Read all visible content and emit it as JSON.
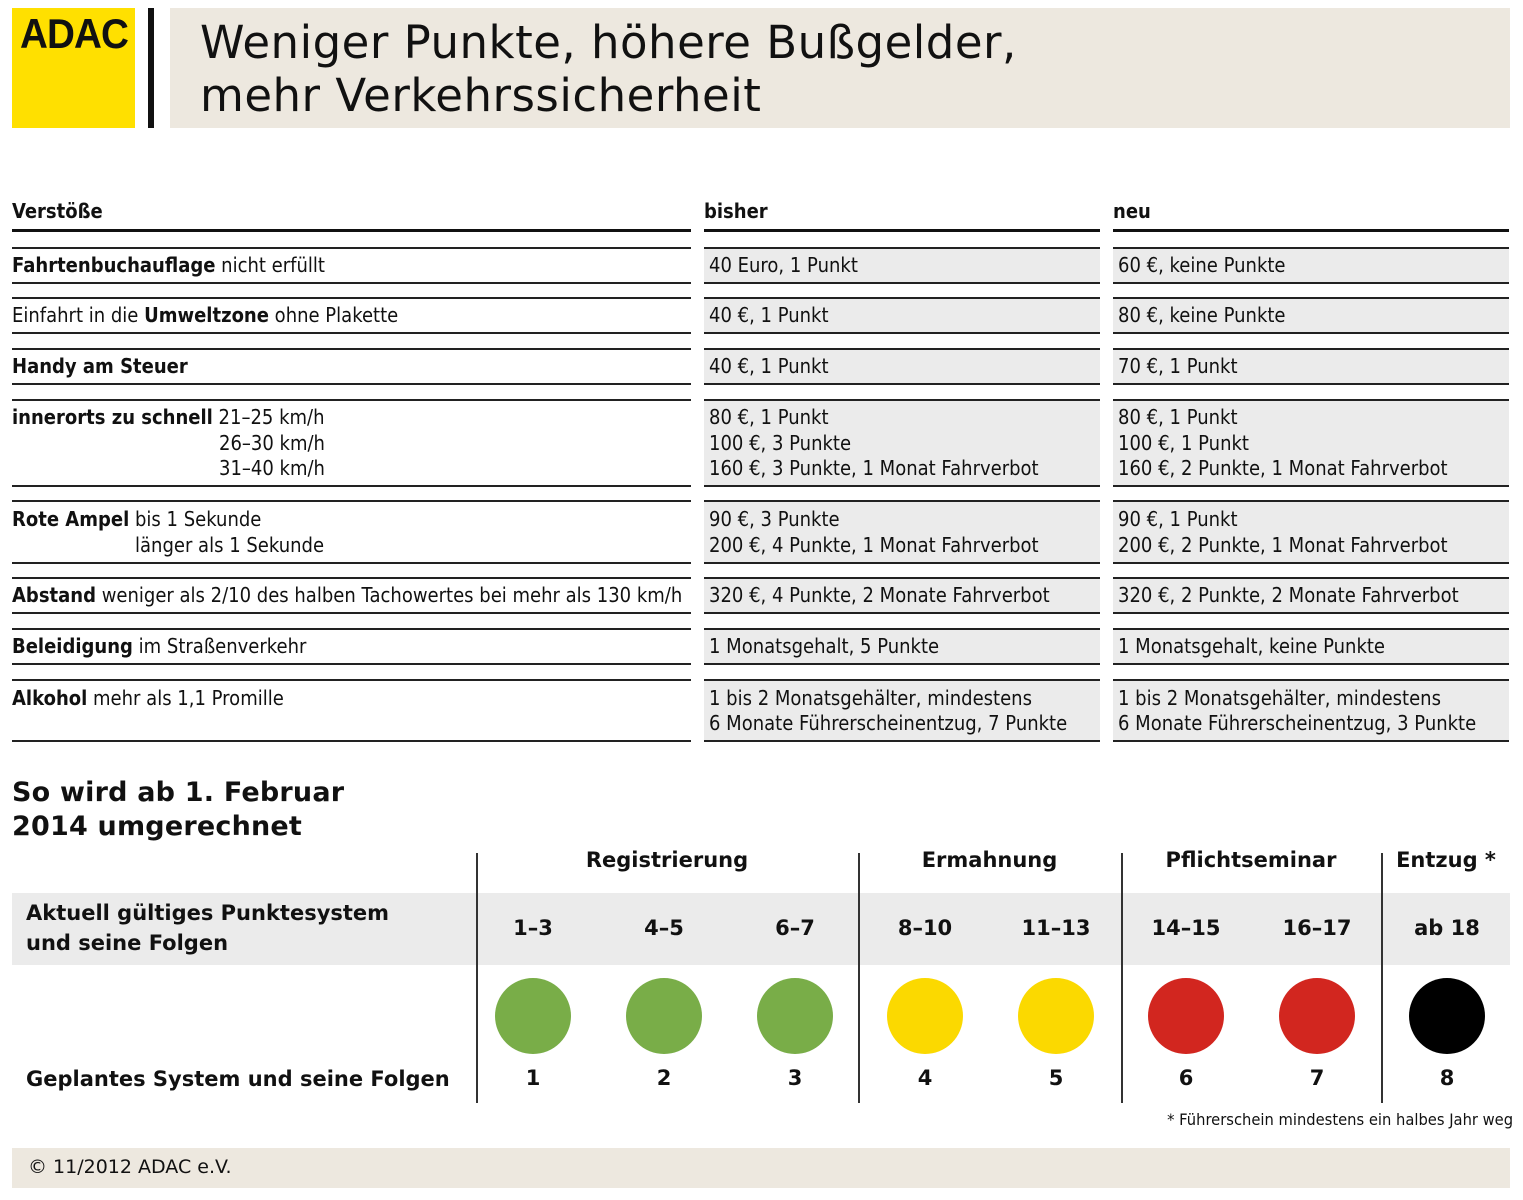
{
  "header": {
    "logo_text": "ADAC",
    "title_line1": "Weniger Punkte, höhere Bußgelder,",
    "title_line2": "mehr Verkehrssicherheit"
  },
  "table": {
    "columns": [
      "Verstöße",
      "bisher",
      "neu"
    ],
    "rows": [
      {
        "offense": [
          [
            {
              "b": "Fahrtenbuchauflage"
            },
            {
              "t": " nicht erfüllt"
            }
          ]
        ],
        "bisher": [
          "40 Euro, 1 Punkt"
        ],
        "neu": [
          "60 €, keine Punkte"
        ]
      },
      {
        "offense": [
          [
            {
              "t": "Einfahrt in die "
            },
            {
              "b": "Umweltzone"
            },
            {
              "t": " ohne Plakette"
            }
          ]
        ],
        "bisher": [
          "40 €, 1 Punkt"
        ],
        "neu": [
          "80 €, keine Punkte"
        ]
      },
      {
        "offense": [
          [
            {
              "b": "Handy am Steuer"
            }
          ]
        ],
        "bisher": [
          "40 €, 1 Punkt"
        ],
        "neu": [
          "70 €, 1 Punkt"
        ]
      },
      {
        "offense": [
          [
            {
              "b": "innerorts zu schnell"
            },
            {
              "t": " 21–25 km/h"
            }
          ],
          [
            {
              "t": "26–30 km/h"
            }
          ],
          [
            {
              "t": "31–40 km/h"
            }
          ]
        ],
        "bisher": [
          "80 €, 1 Punkt",
          "100 €, 3 Punkte",
          "160 €, 3 Punkte, 1 Monat Fahrverbot"
        ],
        "neu": [
          "80 €, 1 Punkt",
          "100 €, 1 Punkt",
          "160 €, 2 Punkte, 1 Monat Fahrverbot"
        ]
      },
      {
        "offense": [
          [
            {
              "b": "Rote Ampel"
            },
            {
              "t": " bis 1 Sekunde"
            }
          ],
          [
            {
              "t": "länger als 1 Sekunde"
            }
          ]
        ],
        "bisher": [
          "90 €, 3 Punkte",
          "200 €, 4 Punkte, 1 Monat Fahrverbot"
        ],
        "neu": [
          "90 €, 1 Punkt",
          "200 €, 2 Punkte, 1 Monat Fahrverbot"
        ]
      },
      {
        "offense": [
          [
            {
              "b": "Abstand"
            },
            {
              "t": " weniger als 2/10 des halben Tachowertes bei mehr als 130 km/h"
            }
          ]
        ],
        "bisher": [
          "320 €, 4 Punkte, 2 Monate Fahrverbot"
        ],
        "neu": [
          "320 €, 2 Punkte, 2 Monate Fahrverbot"
        ]
      },
      {
        "offense": [
          [
            {
              "b": "Beleidigung"
            },
            {
              "t": " im Straßenverkehr"
            }
          ]
        ],
        "bisher": [
          "1 Monatsgehalt, 5 Punkte"
        ],
        "neu": [
          "1 Monatsgehalt, keine Punkte"
        ]
      },
      {
        "offense": [
          [
            {
              "b": "Alkohol"
            },
            {
              "t": " mehr als 1,1 Promille"
            }
          ]
        ],
        "bisher": [
          "1 bis 2 Monatsgehälter, mindestens",
          "6 Monate Führerscheinentzug, 7 Punkte"
        ],
        "neu": [
          "1 bis 2 Monatsgehälter, mindestens",
          "6 Monate Führerscheinentzug, 3 Punkte"
        ]
      }
    ]
  },
  "conversion": {
    "title_line1": "So wird ab 1. Februar",
    "title_line2": "2014 umgerechnet",
    "groups": [
      "Registrierung",
      "Ermahnung",
      "Pflichtseminar",
      "Entzug *"
    ],
    "current_label_line1": "Aktuell gültiges Punktesystem",
    "current_label_line2": "und seine Folgen",
    "planned_label": "Geplantes System und seine Folgen",
    "columns": [
      {
        "range": "1–3",
        "points": "1",
        "color": "#79ad48"
      },
      {
        "range": "4–5",
        "points": "2",
        "color": "#79ad48"
      },
      {
        "range": "6–7",
        "points": "3",
        "color": "#79ad48"
      },
      {
        "range": "8–10",
        "points": "4",
        "color": "#fbd900"
      },
      {
        "range": "11–13",
        "points": "5",
        "color": "#fbd900"
      },
      {
        "range": "14–15",
        "points": "6",
        "color": "#d2261f"
      },
      {
        "range": "16–17",
        "points": "7",
        "color": "#d2261f"
      },
      {
        "range": "ab 18",
        "points": "8",
        "color": "#000000"
      }
    ],
    "footnote": "* Führerschein mindestens ein halbes Jahr weg"
  },
  "footer": {
    "copyright": "© 11/2012 ADAC e.V."
  }
}
